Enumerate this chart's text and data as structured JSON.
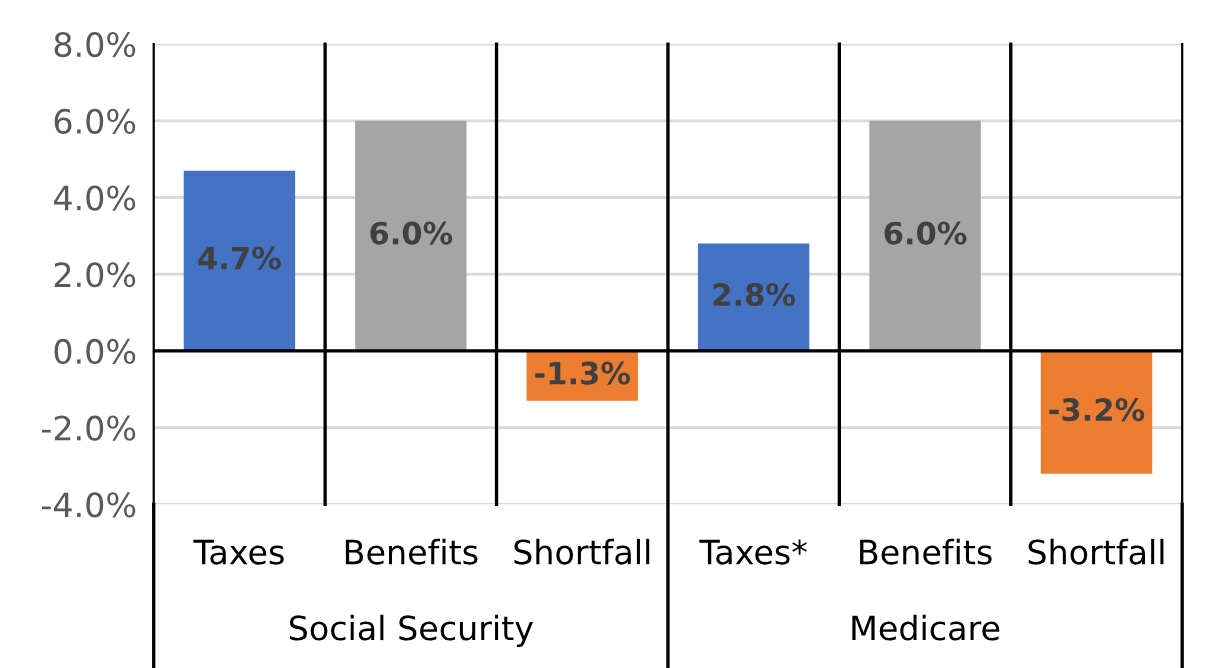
{
  "chart_data": {
    "type": "bar",
    "categories": [
      "Taxes",
      "Benefits",
      "Shortfall",
      "Taxes*",
      "Benefits",
      "Shortfall"
    ],
    "values": [
      4.7,
      6.0,
      -1.3,
      2.8,
      6.0,
      -3.2
    ],
    "colors": [
      "#4472c4",
      "#a5a5a5",
      "#ed7d31",
      "#4472c4",
      "#a5a5a5",
      "#ed7d31"
    ],
    "value_labels": [
      "4.7%",
      "6.0%",
      "-1.3%",
      "2.8%",
      "6.0%",
      "-3.2%"
    ],
    "ylim": [
      -4,
      8
    ],
    "yticks": [
      {
        "value": -4,
        "label": "-4.0%"
      },
      {
        "value": -2,
        "label": "-2.0%"
      },
      {
        "value": 0,
        "label": "0.0%"
      },
      {
        "value": 2,
        "label": "2.0%"
      },
      {
        "value": 4,
        "label": "4.0%"
      },
      {
        "value": 6,
        "label": "6.0%"
      },
      {
        "value": 8,
        "label": "8.0%"
      }
    ],
    "grid": "y",
    "annotations": [
      "Social Security",
      "Medicare"
    ]
  }
}
